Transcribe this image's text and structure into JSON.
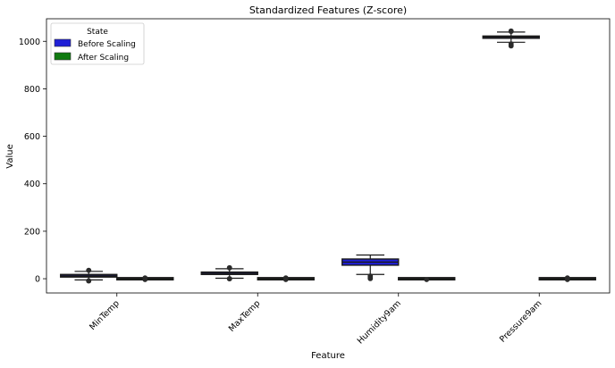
{
  "chart_data": {
    "type": "box",
    "title": "Standardized Features (Z-score)",
    "xlabel": "Feature",
    "ylabel": "Value",
    "ylim": [
      -60,
      1095
    ],
    "yticks": [
      0,
      200,
      400,
      600,
      800,
      1000
    ],
    "categories": [
      "MinTemp",
      "MaxTemp",
      "Humidity9am",
      "Pressure9am"
    ],
    "legend": {
      "title": "State",
      "position": "top-left",
      "entries": [
        {
          "label": "Before Scaling",
          "color": "#1f1fd6"
        },
        {
          "label": "After Scaling",
          "color": "#0f7a0f"
        }
      ]
    },
    "series": [
      {
        "name": "Before Scaling",
        "color": "#1f1fd6",
        "boxes": [
          {
            "category": "MinTemp",
            "whislo": -5,
            "q1": 7,
            "med": 12,
            "q3": 18,
            "whishi": 31,
            "fliers": [
              35,
              36,
              -8,
              -10
            ]
          },
          {
            "category": "MaxTemp",
            "whislo": 2,
            "q1": 18,
            "med": 23,
            "q3": 28,
            "whishi": 42,
            "fliers": [
              45,
              47,
              1,
              -1
            ]
          },
          {
            "category": "Humidity9am",
            "whislo": 18,
            "q1": 57,
            "med": 70,
            "q3": 83,
            "whishi": 100,
            "fliers": [
              12,
              8,
              4,
              0
            ]
          },
          {
            "category": "Pressure9am",
            "whislo": 996,
            "q1": 1013,
            "med": 1017,
            "q3": 1022,
            "whishi": 1039,
            "fliers": [
              1041,
              1044,
              990,
              985,
              980
            ]
          }
        ]
      },
      {
        "name": "After Scaling",
        "color": "#0f7a0f",
        "boxes": [
          {
            "category": "MinTemp",
            "whislo": -3,
            "q1": -1,
            "med": 0,
            "q3": 1,
            "whishi": 3,
            "fliers": [
              4,
              -4
            ]
          },
          {
            "category": "MaxTemp",
            "whislo": -3,
            "q1": -1,
            "med": 0,
            "q3": 1,
            "whishi": 3,
            "fliers": [
              4,
              -4
            ]
          },
          {
            "category": "Humidity9am",
            "whislo": -3,
            "q1": -1,
            "med": 0,
            "q3": 1,
            "whishi": 2,
            "fliers": [
              -4
            ]
          },
          {
            "category": "Pressure9am",
            "whislo": -3,
            "q1": -1,
            "med": 0,
            "q3": 1,
            "whishi": 3,
            "fliers": [
              4,
              -4
            ]
          }
        ]
      }
    ]
  }
}
